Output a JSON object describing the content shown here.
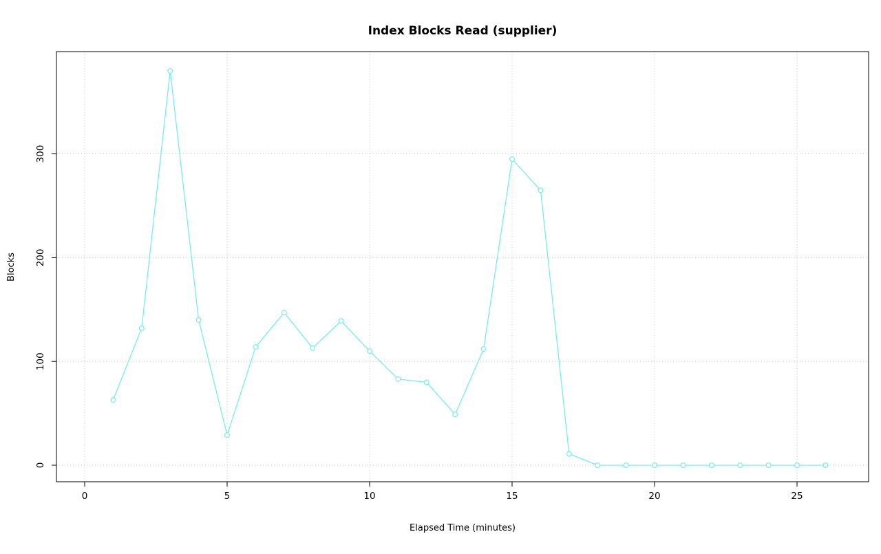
{
  "chart_data": {
    "type": "line",
    "title": "Index Blocks Read (supplier)",
    "xlabel": "Elapsed Time (minutes)",
    "ylabel": "Blocks",
    "x": [
      1,
      2,
      3,
      4,
      5,
      6,
      7,
      8,
      9,
      10,
      11,
      12,
      13,
      14,
      15,
      16,
      17,
      18,
      19,
      20,
      21,
      22,
      23,
      24,
      25,
      26
    ],
    "values": [
      63,
      132,
      380,
      140,
      29,
      114,
      147,
      113,
      139,
      110,
      83,
      80,
      49,
      112,
      295,
      265,
      11,
      0,
      0,
      0,
      0,
      0,
      0,
      0,
      0,
      0
    ],
    "xticks": [
      0,
      5,
      10,
      15,
      20,
      25
    ],
    "yticks": [
      0,
      100,
      200,
      300
    ],
    "xlim": [
      -1,
      27.5
    ],
    "ylim": [
      -16,
      398
    ],
    "grid": true,
    "grid_style": "dotted",
    "legend_position": "none",
    "marker": "open-circle",
    "colors": {
      "line": "#76ECEF",
      "marker_stroke": "#76ECEF",
      "marker_fill": "#FFFFFF",
      "grid": "#C8C8C8",
      "axis": "#000000",
      "background": "#FFFFFF"
    }
  }
}
